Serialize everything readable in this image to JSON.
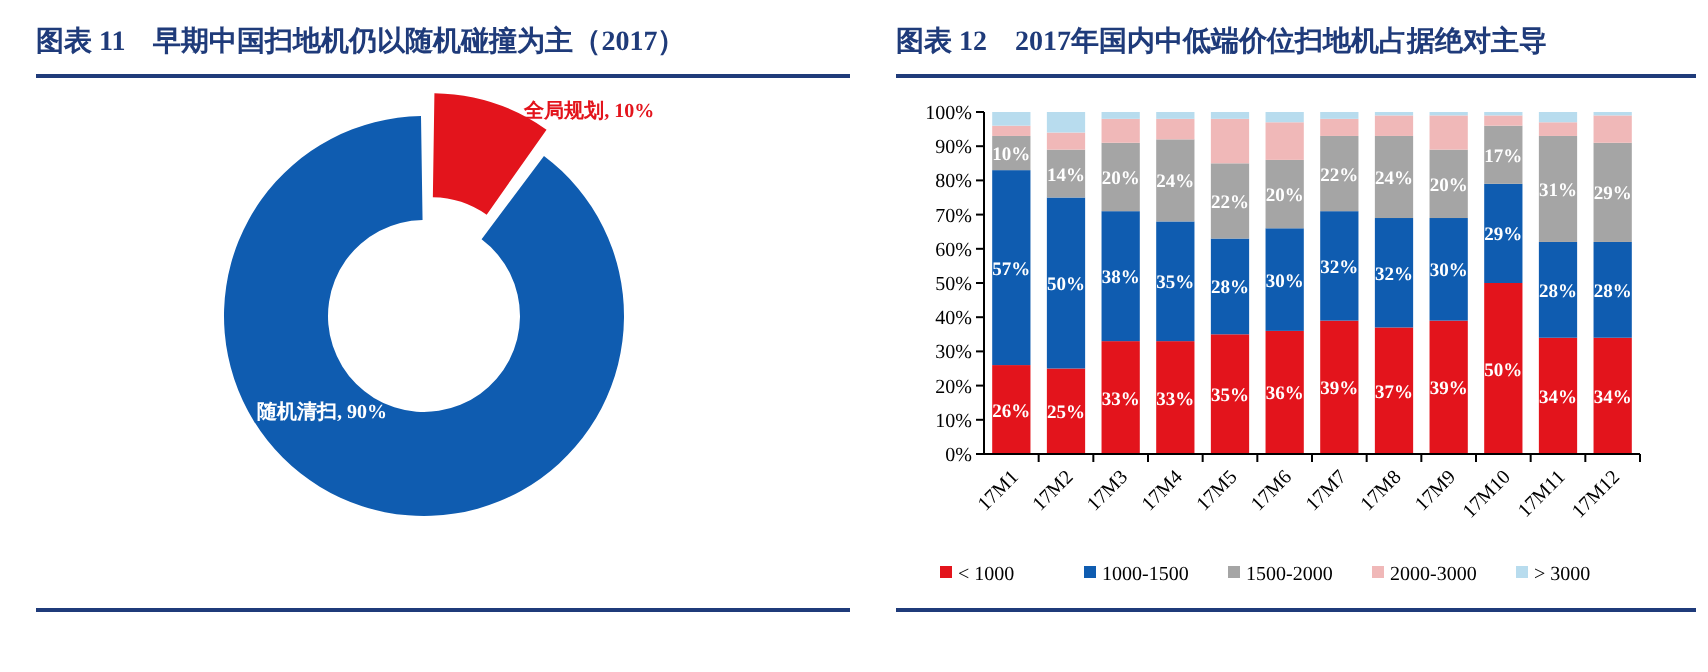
{
  "chart_data": [
    {
      "type": "donut",
      "title": "图表 11　早期中国扫地机仍以随机碰撞为主（2017）",
      "categories": [
        "全局规划",
        "随机清扫"
      ],
      "values": [
        10,
        90
      ],
      "value_labels": [
        "10%",
        "90%"
      ],
      "colors": [
        "#e3141c",
        "#0f5cb0"
      ]
    },
    {
      "type": "bar",
      "stacked": true,
      "title": "图表 12　2017年国内中低端价位扫地机占据绝对主导",
      "categories": [
        "17M1",
        "17M2",
        "17M3",
        "17M4",
        "17M5",
        "17M6",
        "17M7",
        "17M8",
        "17M9",
        "17M10",
        "17M11",
        "17M12"
      ],
      "ylim": [
        0,
        100
      ],
      "yticks": [
        {
          "value": 0,
          "label": "0%"
        },
        {
          "value": 10,
          "label": "10%"
        },
        {
          "value": 20,
          "label": "20%"
        },
        {
          "value": 30,
          "label": "30%"
        },
        {
          "value": 40,
          "label": "40%"
        },
        {
          "value": 50,
          "label": "50%"
        },
        {
          "value": 60,
          "label": "60%"
        },
        {
          "value": 70,
          "label": "70%"
        },
        {
          "value": 80,
          "label": "80%"
        },
        {
          "value": 90,
          "label": "90%"
        },
        {
          "value": 100,
          "label": "100%"
        }
      ],
      "legend": "bottom",
      "grid": false,
      "series": [
        {
          "name": "< 1000",
          "color": "#e3141c",
          "values": [
            26,
            25,
            33,
            33,
            35,
            36,
            39,
            37,
            39,
            50,
            34,
            34
          ],
          "value_labels": [
            "26%",
            "25%",
            "33%",
            "33%",
            "35%",
            "36%",
            "39%",
            "37%",
            "39%",
            "50%",
            "34%",
            "34%"
          ]
        },
        {
          "name": "1000-1500",
          "color": "#0f5cb0",
          "values": [
            57,
            50,
            38,
            35,
            28,
            30,
            32,
            32,
            30,
            29,
            28,
            28
          ],
          "value_labels": [
            "57%",
            "50%",
            "38%",
            "35%",
            "28%",
            "30%",
            "32%",
            "32%",
            "30%",
            "29%",
            "28%",
            "28%"
          ]
        },
        {
          "name": "1500-2000",
          "color": "#a5a5a5",
          "values": [
            10,
            14,
            20,
            24,
            22,
            20,
            22,
            24,
            20,
            17,
            31,
            29
          ],
          "value_labels": [
            "10%",
            "14%",
            "20%",
            "24%",
            "22%",
            "20%",
            "22%",
            "24%",
            "20%",
            "17%",
            "31%",
            "29%"
          ]
        },
        {
          "name": "2000-3000",
          "color": "#f0b8b8",
          "values": [
            3,
            5,
            7,
            6,
            13,
            11,
            5,
            6,
            10,
            3,
            4,
            8
          ]
        },
        {
          "name": "> 3000",
          "color": "#b8dcee",
          "values": [
            4,
            6,
            2,
            2,
            2,
            3,
            2,
            1,
            1,
            1,
            3,
            1
          ]
        }
      ]
    }
  ]
}
